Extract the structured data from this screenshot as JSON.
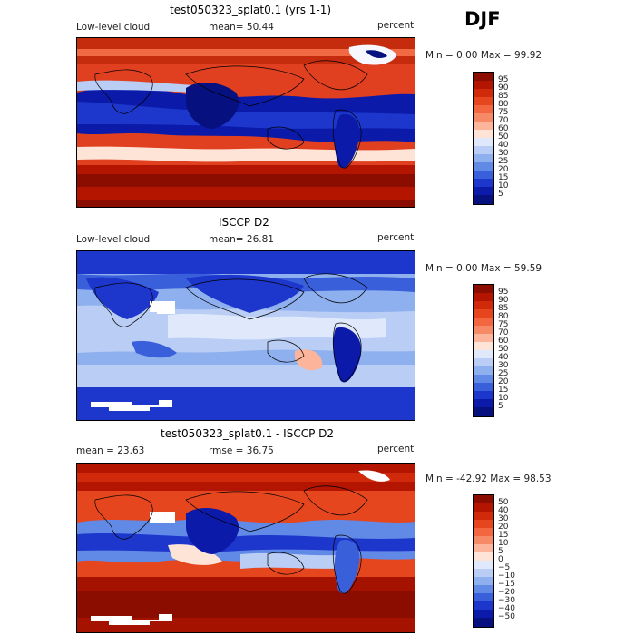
{
  "season": "DJF",
  "panels": [
    {
      "title": "test050323_splat0.1 (yrs 1-1)",
      "left_label": "Low-level cloud",
      "center_label": "mean=  50.44",
      "unit": "percent",
      "minmax": "Min =    0.00 Max =  99.92",
      "colorbar_labels": [
        "95",
        "90",
        "85",
        "80",
        "75",
        "70",
        "60",
        "50",
        "40",
        "30",
        "25",
        "20",
        "15",
        "10",
        "5"
      ],
      "colorbar_colors": [
        "#8b0d00",
        "#b31500",
        "#d12a0a",
        "#e6461e",
        "#f26640",
        "#f78a66",
        "#fcb49a",
        "#fde4d6",
        "#dfe9fb",
        "#b9cdf5",
        "#8fb0ee",
        "#6189e6",
        "#3a5fdb",
        "#1d36cc",
        "#0b1aa8",
        "#06107f"
      ]
    },
    {
      "title": "ISCCP D2",
      "left_label": "Low-level cloud",
      "center_label": "mean=  26.81",
      "unit": "percent",
      "minmax": "Min =    0.00 Max =  59.59",
      "colorbar_labels": [
        "95",
        "90",
        "85",
        "80",
        "75",
        "70",
        "60",
        "50",
        "40",
        "30",
        "25",
        "20",
        "15",
        "10",
        "5"
      ],
      "colorbar_colors": [
        "#8b0d00",
        "#b31500",
        "#d12a0a",
        "#e6461e",
        "#f26640",
        "#f78a66",
        "#fcb49a",
        "#fde4d6",
        "#dfe9fb",
        "#b9cdf5",
        "#8fb0ee",
        "#6189e6",
        "#3a5fdb",
        "#1d36cc",
        "#0b1aa8",
        "#06107f"
      ]
    },
    {
      "title": "test050323_splat0.1 - ISCCP D2",
      "left_label": "mean =   23.63",
      "center_label": "rmse =   36.75",
      "unit": "percent",
      "minmax": "Min = -42.92 Max =  98.53",
      "colorbar_labels": [
        "50",
        "40",
        "30",
        "20",
        "15",
        "10",
        "5",
        "0",
        "−5",
        "−10",
        "−15",
        "−20",
        "−30",
        "−40",
        "−50"
      ],
      "colorbar_colors": [
        "#8b0d00",
        "#b31500",
        "#d12a0a",
        "#e6461e",
        "#f26640",
        "#f78a66",
        "#fcb49a",
        "#fde4d6",
        "#dfe9fb",
        "#b9cdf5",
        "#8fb0ee",
        "#6189e6",
        "#3a5fdb",
        "#1d36cc",
        "#0b1aa8",
        "#06107f"
      ]
    }
  ]
}
